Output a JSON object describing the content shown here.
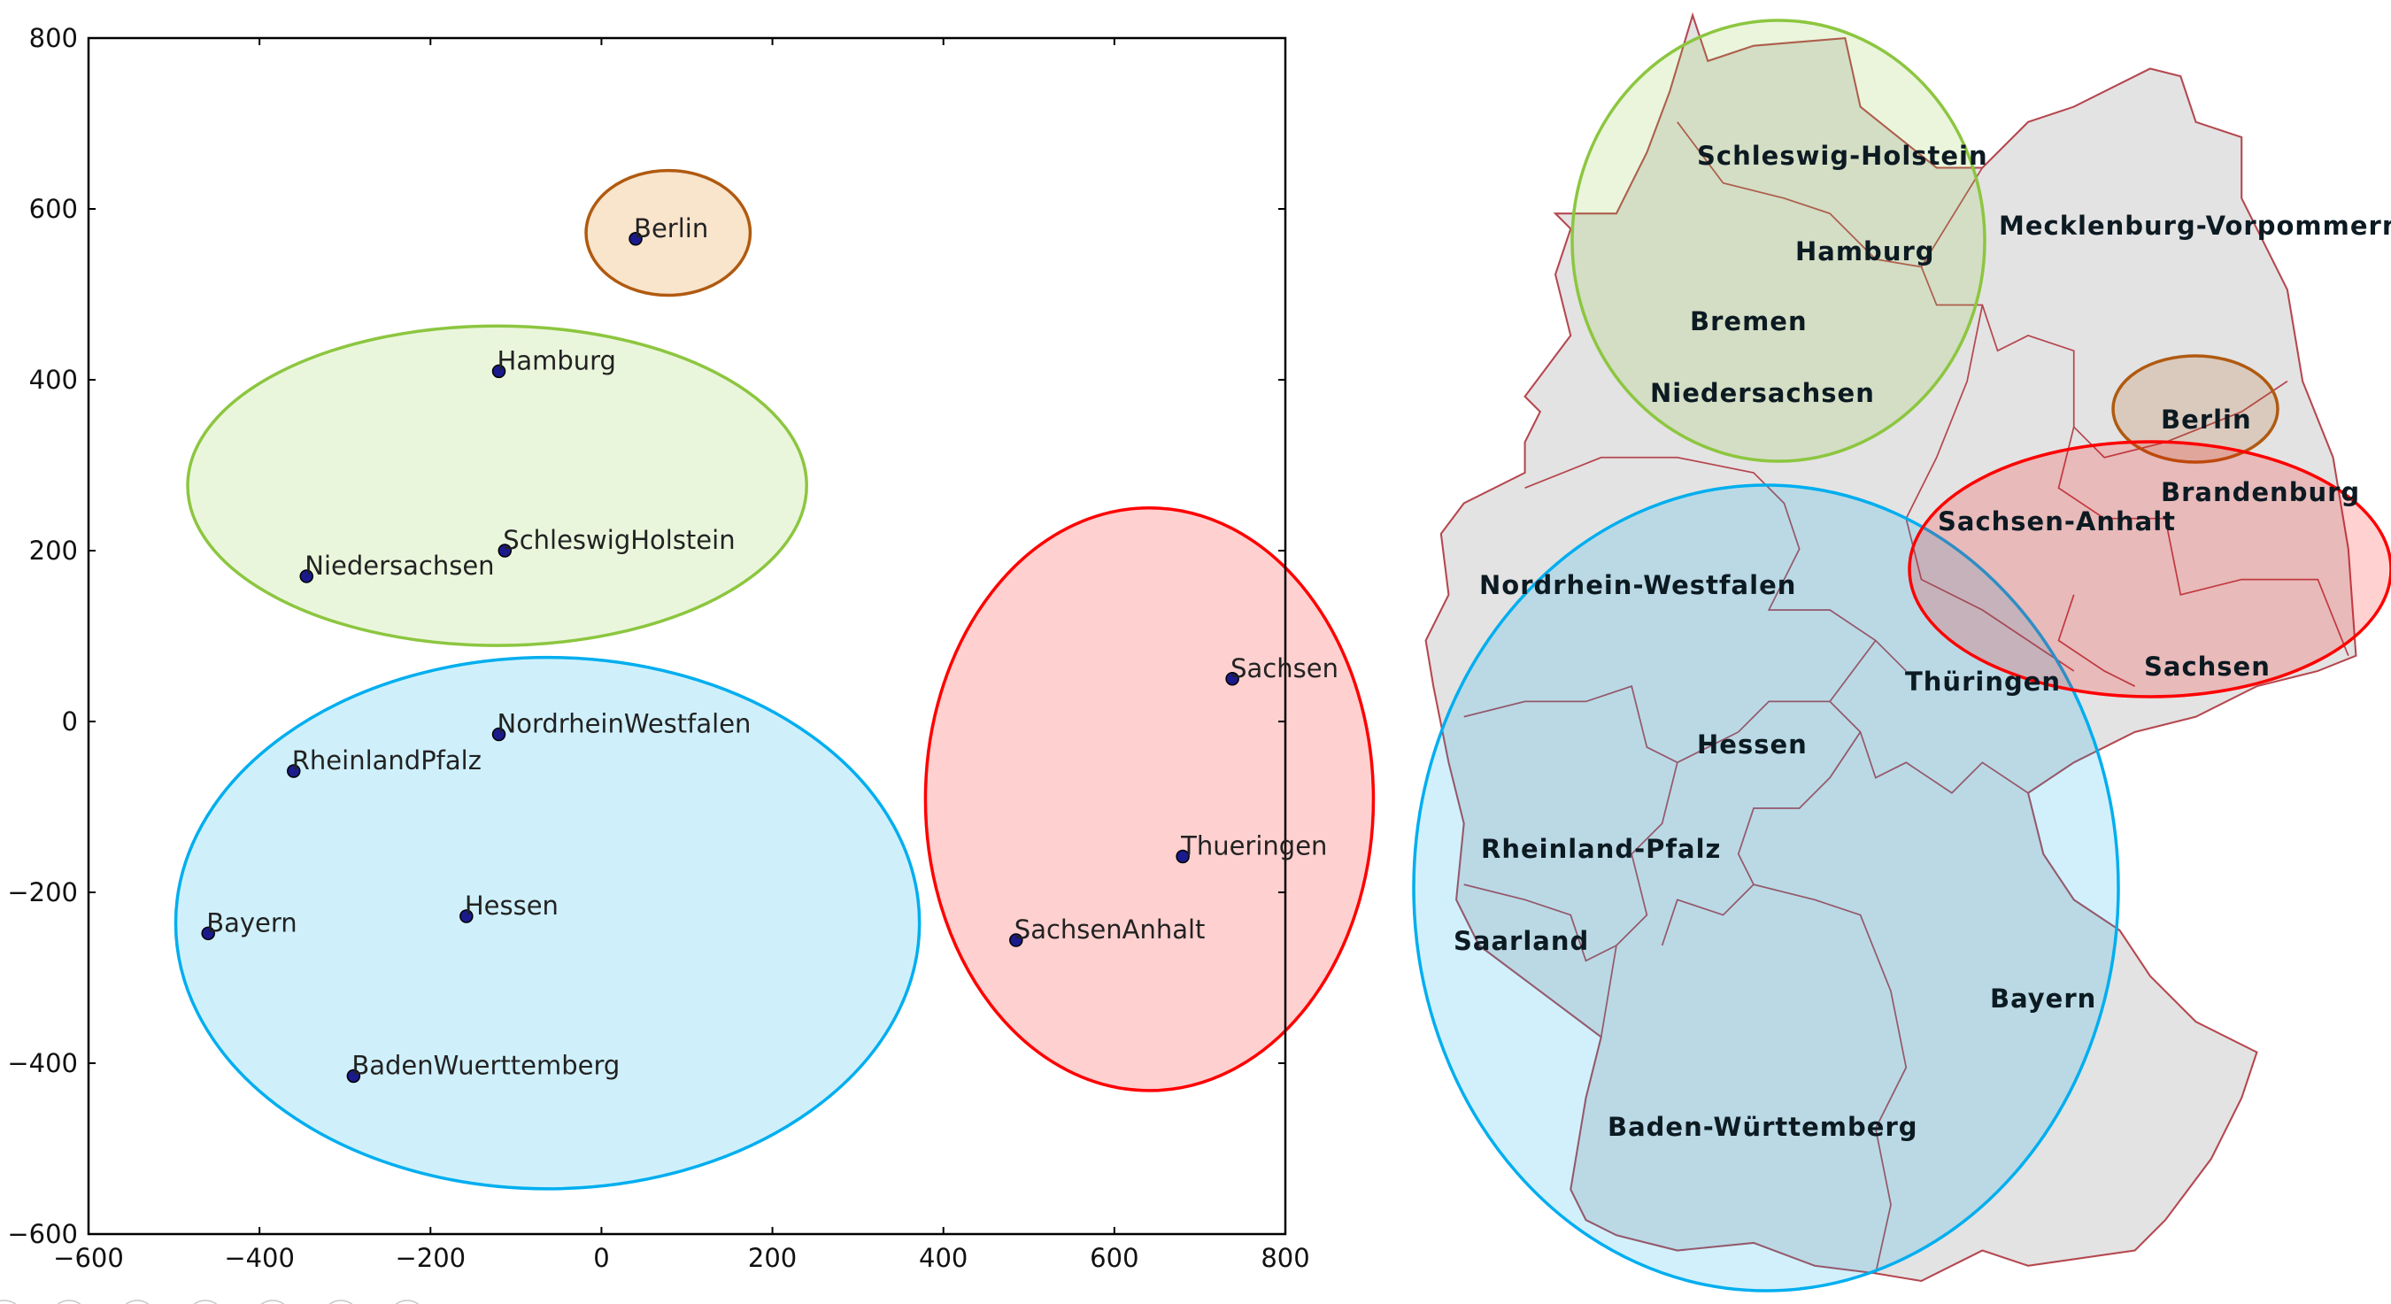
{
  "chart_data": {
    "type": "scatter",
    "xlim": [
      -600,
      800
    ],
    "ylim": [
      -600,
      800
    ],
    "xticks": [
      "−600",
      "−400",
      "−200",
      "0",
      "200",
      "400",
      "600",
      "800"
    ],
    "yticks": [
      "800",
      "600",
      "400",
      "200",
      "0",
      "−200",
      "−400",
      "−600"
    ],
    "xtick_values": [
      -600,
      -400,
      -200,
      0,
      200,
      400,
      600,
      800
    ],
    "ytick_values": [
      800,
      600,
      400,
      200,
      0,
      -200,
      -400,
      -600
    ],
    "grid": false,
    "point_color": "#1a1a8c",
    "points": [
      {
        "label": "Berlin",
        "x": 40,
        "y": 565
      },
      {
        "label": "Hamburg",
        "x": -120,
        "y": 410
      },
      {
        "label": "SchleswigHolstein",
        "x": -113,
        "y": 200
      },
      {
        "label": "Niedersachsen",
        "x": -345,
        "y": 170
      },
      {
        "label": "NordrheinWestfalen",
        "x": -120,
        "y": -15
      },
      {
        "label": "RheinlandPfalz",
        "x": -360,
        "y": -58
      },
      {
        "label": "Bayern",
        "x": -460,
        "y": -248
      },
      {
        "label": "Hessen",
        "x": -158,
        "y": -228
      },
      {
        "label": "BadenWuerttemberg",
        "x": -290,
        "y": -415
      },
      {
        "label": "Sachsen",
        "x": 738,
        "y": 50
      },
      {
        "label": "Thueringen",
        "x": 680,
        "y": -158
      },
      {
        "label": "SachsenAnhalt",
        "x": 485,
        "y": -256
      }
    ],
    "clusters": [
      {
        "cx": 78,
        "cy": 572,
        "rx": 96,
        "ry": 73,
        "stroke": "#b05a10",
        "fill": "#f9e4cc"
      },
      {
        "cx": -122,
        "cy": 276,
        "rx": 362,
        "ry": 187,
        "stroke": "#8cc63f",
        "fill": "#eaf6dc"
      },
      {
        "cx": -63,
        "cy": -236,
        "rx": 435,
        "ry": 311,
        "stroke": "#00aeef",
        "fill": "#cff0fb"
      },
      {
        "cx": 641,
        "cy": -91,
        "rx": 262,
        "ry": 341,
        "stroke": "#ff0000",
        "fill": "#ffd0d0"
      }
    ]
  },
  "map": {
    "fill": "#e3e3e3",
    "border_color": "#b5474f",
    "labels": [
      "Schleswig-Holstein",
      "Hamburg",
      "Mecklenburg-Vorpommern",
      "Bremen",
      "Niedersachsen",
      "Berlin",
      "Brandenburg",
      "Sachsen-Anhalt",
      "Nordrhein-Westfalen",
      "Thüringen",
      "Sachsen",
      "Hessen",
      "Rheinland-Pfalz",
      "Saarland",
      "Bayern",
      "Baden-Württemberg"
    ]
  },
  "toolbar": {
    "icons": [
      "back-icon",
      "forward-icon",
      "pen-icon",
      "slides-icon",
      "zoom-icon",
      "screen-icon",
      "more-icon"
    ]
  }
}
